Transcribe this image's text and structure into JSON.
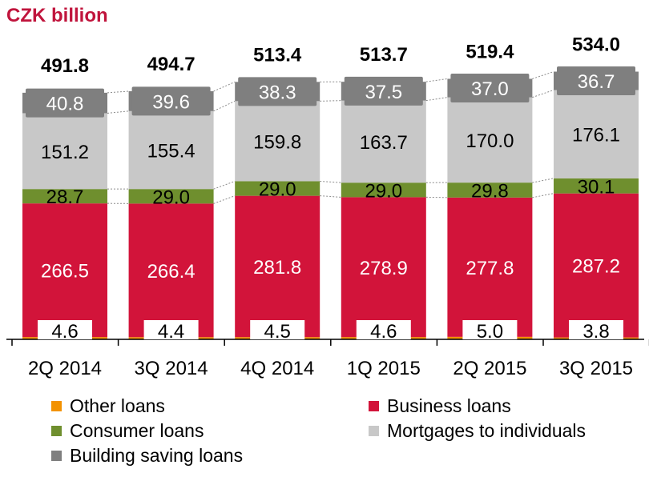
{
  "chart_data": {
    "type": "bar",
    "stacked": true,
    "unit_label": "CZK billion",
    "categories": [
      "2Q 2014",
      "3Q 2014",
      "4Q 2014",
      "1Q 2015",
      "2Q 2015",
      "3Q 2015"
    ],
    "totals": [
      "491.8",
      "494.7",
      "513.4",
      "513.7",
      "519.4",
      "534.0"
    ],
    "series": [
      {
        "name": "Other loans",
        "color": "#f39200",
        "values": [
          4.6,
          4.4,
          4.5,
          4.6,
          5.0,
          3.8
        ],
        "labels": [
          "4.6",
          "4.4",
          "4.5",
          "4.6",
          "5.0",
          "3.8"
        ]
      },
      {
        "name": "Business loans",
        "color": "#d2143a",
        "values": [
          266.5,
          266.4,
          281.8,
          278.9,
          277.8,
          287.2
        ],
        "labels": [
          "266.5",
          "266.4",
          "281.8",
          "278.9",
          "277.8",
          "287.2"
        ]
      },
      {
        "name": "Consumer loans",
        "color": "#6f8f2e",
        "values": [
          28.7,
          29.0,
          29.0,
          29.0,
          29.8,
          30.1
        ],
        "labels": [
          "28.7",
          "29.0",
          "29.0",
          "29.0",
          "29.8",
          "30.1"
        ]
      },
      {
        "name": "Mortgages to individuals",
        "color": "#c8c8c8",
        "values": [
          151.2,
          155.4,
          159.8,
          163.7,
          170.0,
          176.1
        ],
        "labels": [
          "151.2",
          "155.4",
          "159.8",
          "163.7",
          "170.0",
          "176.1"
        ]
      },
      {
        "name": "Building saving loans",
        "color": "#7f7f7f",
        "values": [
          40.8,
          39.6,
          38.3,
          37.5,
          37.0,
          36.7
        ],
        "labels": [
          "40.8",
          "39.6",
          "38.3",
          "37.5",
          "37.0",
          "36.7"
        ]
      }
    ],
    "legend_order": [
      0,
      1,
      2,
      3,
      4
    ],
    "legend_position": "bottom",
    "grid": false
  }
}
